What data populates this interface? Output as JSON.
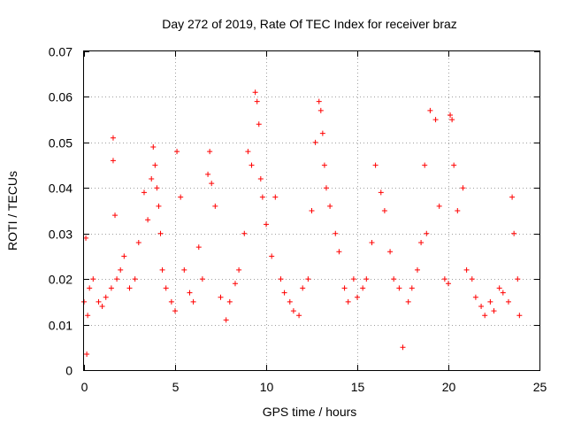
{
  "chart_data": {
    "type": "scatter",
    "title": "Day 272 of 2019, Rate Of TEC Index for receiver braz",
    "xlabel": "GPS time / hours",
    "ylabel": "ROTI / TECUs",
    "xlim": [
      0,
      25
    ],
    "ylim": [
      0,
      0.07
    ],
    "x_ticks": [
      0,
      5,
      10,
      15,
      20,
      25
    ],
    "x_tick_labels": [
      "0",
      "5",
      "10",
      "15",
      "20",
      "25"
    ],
    "y_ticks": [
      0,
      0.01,
      0.02,
      0.03,
      0.04,
      0.05,
      0.06,
      0.07
    ],
    "y_tick_labels": [
      "0",
      "0.01",
      "0.02",
      "0.03",
      "0.04",
      "0.05",
      "0.06",
      "0.07"
    ],
    "grid": true,
    "marker": "plus",
    "series_color": "#ff0000",
    "series": [
      {
        "x": [
          0.0,
          0.1,
          0.15,
          0.2,
          0.3,
          0.5,
          0.8,
          1.0,
          1.2,
          1.5,
          1.6,
          1.6,
          1.7,
          1.8,
          2.0,
          2.2,
          2.5,
          2.8,
          3.0,
          3.3,
          3.5,
          3.7,
          3.8,
          3.9,
          4.0,
          4.1,
          4.2,
          4.3,
          4.5,
          4.8,
          5.0,
          5.1,
          5.3,
          5.5,
          5.8,
          6.0,
          6.3,
          6.5,
          6.8,
          6.9,
          7.0,
          7.2,
          7.5,
          7.8,
          8.0,
          8.3,
          8.5,
          8.8,
          9.0,
          9.2,
          9.4,
          9.5,
          9.6,
          9.7,
          9.8,
          10.0,
          10.3,
          10.5,
          10.8,
          11.0,
          11.3,
          11.5,
          11.8,
          12.0,
          12.3,
          12.5,
          12.7,
          12.9,
          13.0,
          13.1,
          13.2,
          13.3,
          13.5,
          13.8,
          14.0,
          14.3,
          14.5,
          14.8,
          15.0,
          15.3,
          15.5,
          15.8,
          16.0,
          16.3,
          16.5,
          16.8,
          17.0,
          17.3,
          17.5,
          17.8,
          18.0,
          18.3,
          18.5,
          18.7,
          18.8,
          19.0,
          19.3,
          19.5,
          19.8,
          20.0,
          20.1,
          20.2,
          20.3,
          20.5,
          20.8,
          21.0,
          21.3,
          21.5,
          21.8,
          22.0,
          22.3,
          22.5,
          22.8,
          23.0,
          23.3,
          23.5,
          23.6,
          23.8,
          23.9
        ],
        "y": [
          0.015,
          0.029,
          0.0035,
          0.012,
          0.018,
          0.02,
          0.015,
          0.014,
          0.016,
          0.018,
          0.051,
          0.046,
          0.034,
          0.02,
          0.022,
          0.025,
          0.018,
          0.02,
          0.028,
          0.039,
          0.033,
          0.042,
          0.049,
          0.045,
          0.04,
          0.036,
          0.03,
          0.022,
          0.018,
          0.015,
          0.013,
          0.048,
          0.038,
          0.022,
          0.017,
          0.015,
          0.027,
          0.02,
          0.043,
          0.048,
          0.041,
          0.036,
          0.016,
          0.011,
          0.015,
          0.019,
          0.022,
          0.03,
          0.048,
          0.045,
          0.061,
          0.059,
          0.054,
          0.042,
          0.038,
          0.032,
          0.025,
          0.038,
          0.02,
          0.017,
          0.015,
          0.013,
          0.012,
          0.018,
          0.02,
          0.035,
          0.05,
          0.059,
          0.057,
          0.052,
          0.045,
          0.04,
          0.036,
          0.03,
          0.026,
          0.018,
          0.015,
          0.02,
          0.016,
          0.018,
          0.02,
          0.028,
          0.045,
          0.039,
          0.035,
          0.026,
          0.02,
          0.018,
          0.005,
          0.015,
          0.018,
          0.022,
          0.028,
          0.045,
          0.03,
          0.057,
          0.055,
          0.036,
          0.02,
          0.019,
          0.056,
          0.055,
          0.045,
          0.035,
          0.04,
          0.022,
          0.02,
          0.016,
          0.014,
          0.012,
          0.015,
          0.013,
          0.018,
          0.017,
          0.015,
          0.038,
          0.03,
          0.02,
          0.012
        ]
      }
    ]
  }
}
